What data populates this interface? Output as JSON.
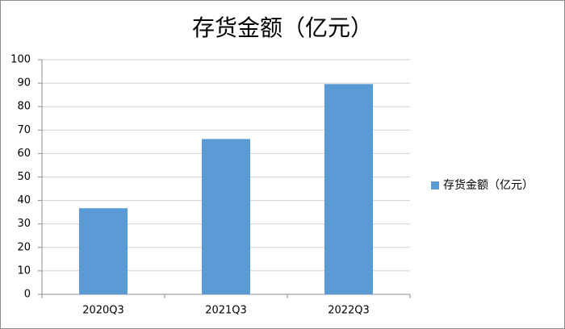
{
  "chart_data": {
    "type": "bar",
    "title": "存货金额（亿元）",
    "categories": [
      "2020Q3",
      "2021Q3",
      "2022Q3"
    ],
    "series": [
      {
        "name": "存货金额（亿元）",
        "color": "#5b9bd5",
        "values": [
          36.7,
          66.2,
          89.6
        ]
      }
    ],
    "ylim": [
      0,
      100
    ],
    "yticks": [
      0,
      10,
      20,
      30,
      40,
      50,
      60,
      70,
      80,
      90,
      100
    ],
    "grid": true,
    "legend": "right"
  }
}
